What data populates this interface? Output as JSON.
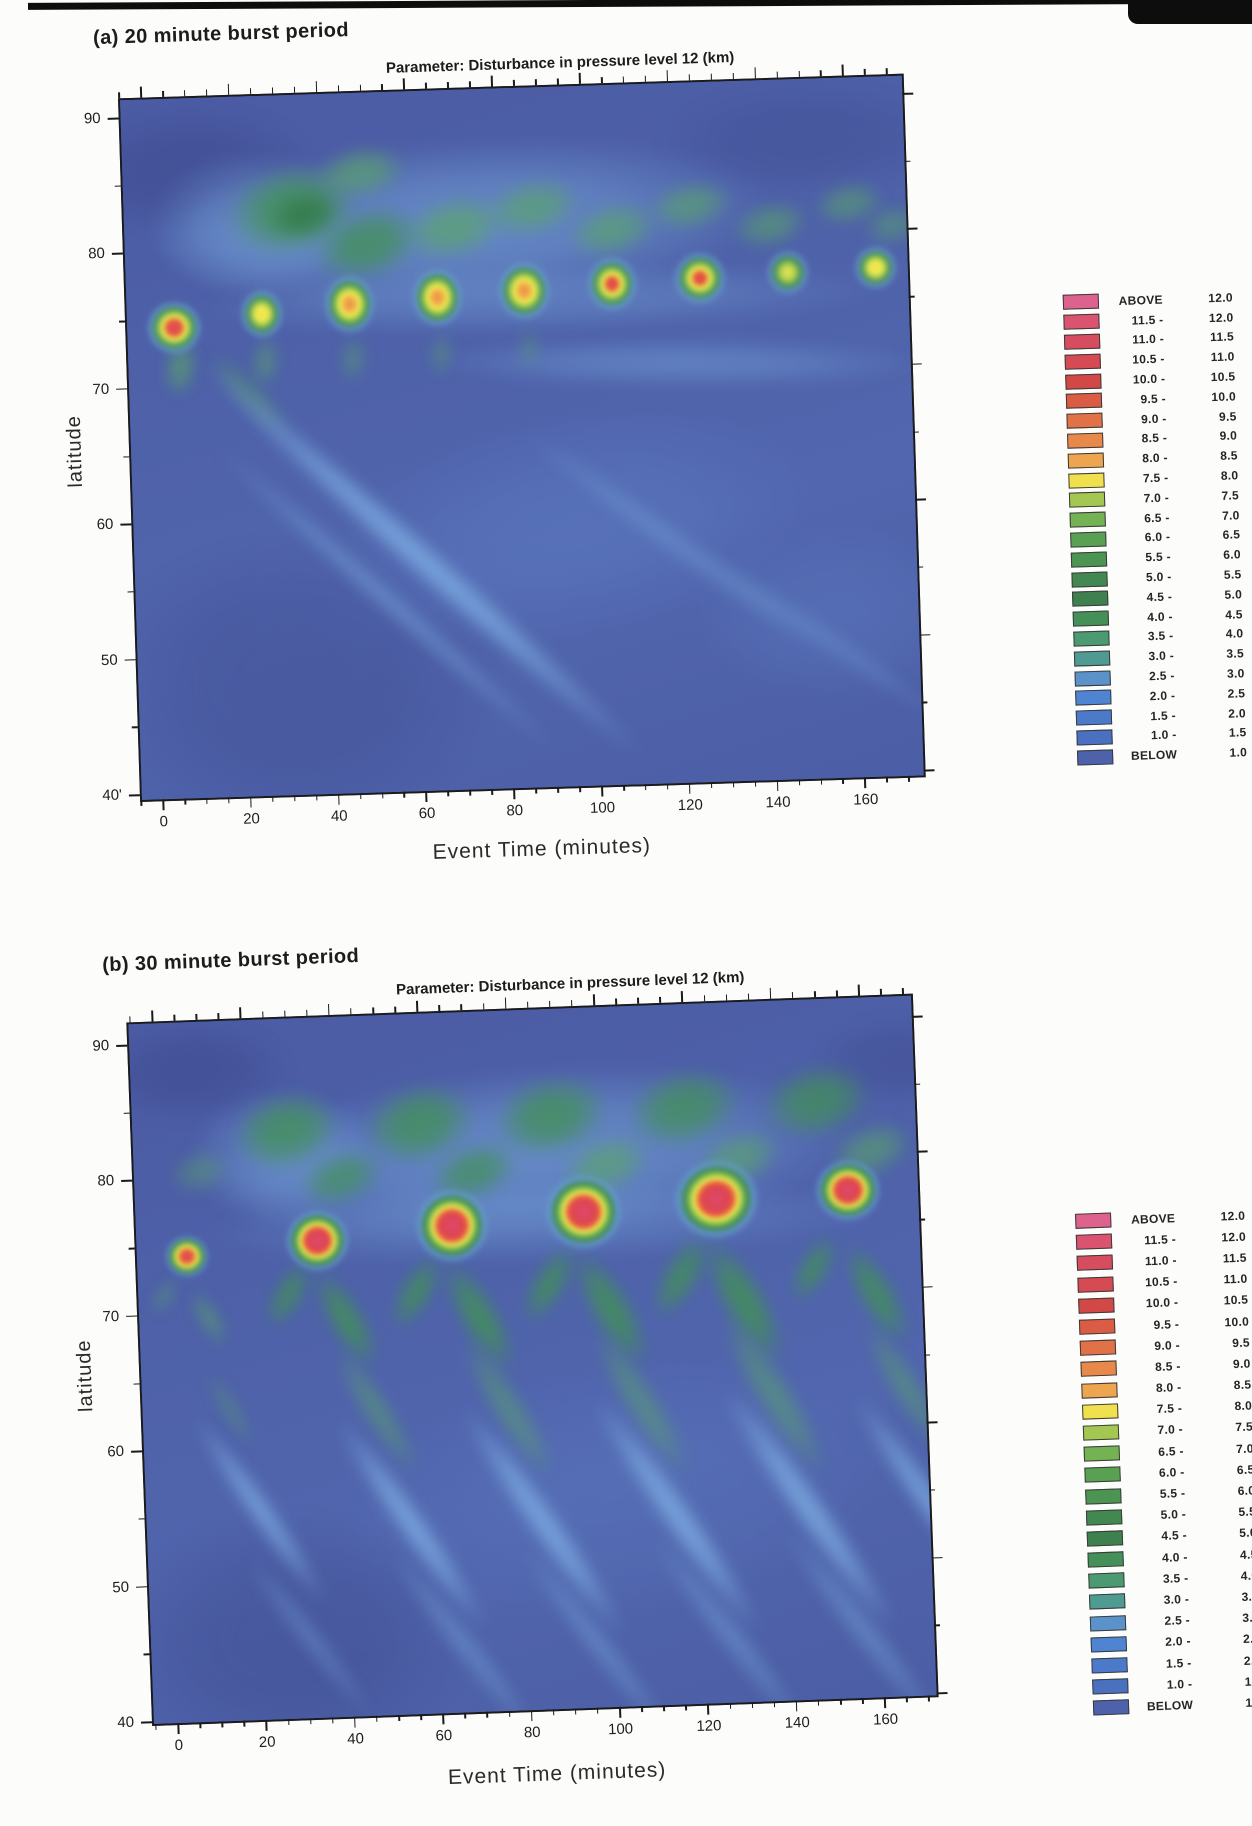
{
  "page": {
    "kind": "scanned scientific figure, two latitude-vs-time disturbance contour maps"
  },
  "legend": {
    "rows": [
      {
        "label": "ABOVE",
        "value": "12.0",
        "color": "#dd628e"
      },
      {
        "label": "11.5 -",
        "value": "12.0",
        "color": "#da5470"
      },
      {
        "label": "11.0 -",
        "value": "11.5",
        "color": "#d74d60"
      },
      {
        "label": "10.5 -",
        "value": "11.0",
        "color": "#d54a53"
      },
      {
        "label": "10.0 -",
        "value": "10.5",
        "color": "#d24846"
      },
      {
        "label": "9.5 -",
        "value": "10.0",
        "color": "#da5c45"
      },
      {
        "label": "9.0 -",
        "value": "9.5",
        "color": "#e17247"
      },
      {
        "label": "8.5 -",
        "value": "9.0",
        "color": "#e8884b"
      },
      {
        "label": "8.0 -",
        "value": "8.5",
        "color": "#eda550"
      },
      {
        "label": "7.5 -",
        "value": "8.0",
        "color": "#f1e04d"
      },
      {
        "label": "7.0 -",
        "value": "7.5",
        "color": "#a3c750"
      },
      {
        "label": "6.5 -",
        "value": "7.0",
        "color": "#74b253"
      },
      {
        "label": "6.0 -",
        "value": "6.5",
        "color": "#58a153"
      },
      {
        "label": "5.5 -",
        "value": "6.0",
        "color": "#4c9452"
      },
      {
        "label": "5.0 -",
        "value": "5.5",
        "color": "#438850"
      },
      {
        "label": "4.5 -",
        "value": "5.0",
        "color": "#3e814e"
      },
      {
        "label": "4.0 -",
        "value": "4.5",
        "color": "#458f59"
      },
      {
        "label": "3.5 -",
        "value": "4.0",
        "color": "#4c9a71"
      },
      {
        "label": "3.0 -",
        "value": "3.5",
        "color": "#4f9a91"
      },
      {
        "label": "2.5 -",
        "value": "3.0",
        "color": "#5a92c9"
      },
      {
        "label": "2.0 -",
        "value": "2.5",
        "color": "#4f84d2"
      },
      {
        "label": "1.5 -",
        "value": "2.0",
        "color": "#4b7acb"
      },
      {
        "label": "1.0 -",
        "value": "1.5",
        "color": "#4a70c0"
      },
      {
        "label": "BELOW",
        "value": "1.0",
        "color": "#4d62ab"
      }
    ]
  },
  "palette": {
    "navy": "radial-gradient(closest-side, rgba(60,70,138,0.9) 0%, rgba(60,70,138,0.75) 50%, rgba(60,70,138,0) 100%)",
    "bluemid": "radial-gradient(closest-side, rgba(100,135,205,0.8) 0%, rgba(100,135,205,0.55) 50%, rgba(100,135,205,0) 100%)",
    "cyan": "radial-gradient(closest-side, rgba(125,178,228,0.85) 0%, rgba(125,178,228,0.62) 50%, rgba(125,178,228,0) 100%)",
    "cyanstreak": "radial-gradient(closest-side, rgba(133,185,235,0.95) 0%, rgba(133,185,235,0.72) 45%, rgba(133,185,235,0) 100%)",
    "greens": "radial-gradient(closest-side, rgba(90,165,105,0.9) 0%, rgba(90,165,105,0.7) 50%, rgba(90,165,105,0) 100%)",
    "greenm": "radial-gradient(closest-side, rgba(66,145,86,0.95) 0%, rgba(66,145,86,0.82) 45%, rgba(66,145,86,0) 100%)",
    "greend": "radial-gradient(closest-side, rgba(48,120,70,0.95) 0%, rgba(48,120,70,0.8) 45%, rgba(48,120,70,0) 100%)",
    "burstRedA": "radial-gradient(closest-side, #e0485c 0%, #e4563f 26%, #f3ed4e 40%, #9cc850 52%, #47925a 66%, rgba(100,165,200,0.65) 80%, rgba(100,165,200,0) 100%)",
    "burstOrgA": "radial-gradient(closest-side, #ec8848 0%, #f0b04c 22%, #f3ed4e 36%, #9cc850 50%, #47925a 66%, rgba(100,165,200,0.6) 80%, rgba(100,165,200,0) 100%)",
    "burstYelA": "radial-gradient(closest-side, #eede4c 0%, #f3ed4e 24%, #a9cc50 42%, #47925a 60%, rgba(100,165,200,0.6) 78%, rgba(100,165,200,0) 100%)",
    "burstYelSA": "radial-gradient(closest-side, #f0ec4e 0%, #a9cc50 34%, #47925a 56%, rgba(100,165,200,0.55) 76%, rgba(100,165,200,0) 100%)",
    "burstRedSA": "radial-gradient(closest-side, #de4550 0%, #e4563f 20%, #f3ed4e 34%, #9cc850 48%, #47925a 64%, rgba(100,165,200,0.6) 78%, rgba(100,165,200,0) 100%)",
    "burstRedSB": "radial-gradient(closest-side, #df4557 0%, #e75a3f 28%, #f4ee4e 44%, #94c44f 56%, #428c54 70%, rgba(100,165,200,0.6) 82%, rgba(100,165,200,0) 100%)",
    "burstRedB": "radial-gradient(closest-side, #e0486e 0%, #dd4550 30%, #e9603f 40%, #f4ee4e 50%, #8cc24f 60%, #3f8a52 72%, rgba(100,160,205,0.7) 84%, rgba(100,160,205,0) 100%)"
  },
  "chart_data": [
    {
      "type": "heatmap",
      "panel": "a",
      "heading": "(a) 20 minute burst period",
      "title": "Parameter: Disturbance in pressure level 12 (km)",
      "xlabel": "Event Time (minutes)",
      "ylabel": "latitude",
      "x_ticks": [
        0,
        20,
        40,
        60,
        80,
        100,
        120,
        140,
        160
      ],
      "x_minor_step": 5,
      "y_ticks": [
        90,
        80,
        70,
        60,
        50,
        40
      ],
      "y_tick_labels": [
        "90",
        "80",
        "70",
        "60",
        "50",
        "40'"
      ],
      "xlim": [
        -5,
        173
      ],
      "ylim": [
        40,
        91.7
      ],
      "legend_range": [
        1.0,
        12.0
      ],
      "burst_period_minutes": 20,
      "burst_times_min": [
        5,
        25,
        45,
        65,
        85,
        105,
        125,
        145,
        165
      ],
      "burst_latitudes_deg": [
        74.6,
        75.4,
        75.9,
        76.2,
        76.5,
        76.8,
        77.0,
        77.2,
        77.4
      ],
      "burst_peak_values": [
        11,
        8,
        9,
        9,
        9.5,
        10.5,
        10.5,
        8,
        7.5
      ],
      "structure_notes": "green fan of disturbance 4-7 spreading poleward (lat 78-87) after t=15; equatorward-propagating cyan streak from (15,71) to (110,41)",
      "feature_format": "[t_min, latitude_deg, width_px, height_px, rotation_deg, palette_key, opacity]",
      "features": [
        [
          10,
          86,
          260,
          130,
          0,
          "navy",
          0.55
        ],
        [
          150,
          87,
          300,
          110,
          0,
          "navy",
          0.35
        ],
        [
          30,
          48,
          420,
          300,
          0,
          "navy",
          0.4
        ],
        [
          95,
          59,
          500,
          230,
          -8,
          "bluemid",
          0.45
        ],
        [
          155,
          52,
          300,
          180,
          0,
          "bluemid",
          0.35
        ],
        [
          72,
          81.5,
          620,
          170,
          -2,
          "cyan",
          0.6
        ],
        [
          24,
          82,
          210,
          150,
          0,
          "cyan",
          0.5
        ],
        [
          120,
          70.8,
          500,
          48,
          2,
          "cyan",
          0.45
        ],
        [
          88,
          75.8,
          700,
          66,
          0,
          "cyan",
          0.4
        ],
        [
          33,
          83,
          135,
          92,
          -10,
          "greenm",
          0.9
        ],
        [
          36,
          82.6,
          76,
          48,
          -10,
          "greend",
          0.8
        ],
        [
          50,
          80.3,
          115,
          72,
          -15,
          "greenm",
          0.85
        ],
        [
          49,
          85.6,
          92,
          52,
          -8,
          "greens",
          0.8
        ],
        [
          70,
          81.3,
          105,
          62,
          -12,
          "greens",
          0.85
        ],
        [
          88,
          82.6,
          98,
          56,
          -10,
          "greens",
          0.8
        ],
        [
          106,
          80.8,
          92,
          52,
          -12,
          "greens",
          0.8
        ],
        [
          124,
          82.4,
          88,
          48,
          -10,
          "greens",
          0.75
        ],
        [
          142,
          80.8,
          78,
          46,
          -12,
          "greens",
          0.7
        ],
        [
          160,
          82.2,
          72,
          42,
          -10,
          "greens",
          0.68
        ],
        [
          170,
          80.5,
          60,
          40,
          -10,
          "greens",
          0.6
        ],
        [
          22,
          69.5,
          115,
          26,
          47,
          "greens",
          0.55
        ],
        [
          60,
          57,
          600,
          34,
          43.5,
          "cyanstreak",
          0.8
        ],
        [
          52,
          54,
          470,
          22,
          43.5,
          "cyanstreak",
          0.5
        ],
        [
          118,
          57.5,
          390,
          26,
          38,
          "cyan",
          0.4
        ],
        [
          150,
          50.5,
          330,
          22,
          36,
          "cyan",
          0.35
        ],
        [
          6.5,
          71.6,
          32,
          60,
          8,
          "greens",
          0.8
        ],
        [
          26,
          71.8,
          28,
          52,
          8,
          "greens",
          0.65
        ],
        [
          46,
          71.8,
          26,
          48,
          8,
          "greens",
          0.55
        ],
        [
          66,
          72,
          24,
          44,
          8,
          "greens",
          0.5
        ],
        [
          86,
          72.2,
          22,
          40,
          8,
          "greens",
          0.45
        ],
        [
          5.5,
          74.6,
          58,
          56,
          0,
          "burstRedA",
          1
        ],
        [
          25.5,
          75.4,
          46,
          52,
          0,
          "burstYelA",
          1
        ],
        [
          45.5,
          75.9,
          54,
          62,
          0,
          "burstOrgA",
          1
        ],
        [
          65.5,
          76.2,
          54,
          62,
          0,
          "burstOrgA",
          1
        ],
        [
          85.5,
          76.5,
          56,
          62,
          0,
          "burstOrgA",
          1
        ],
        [
          105.5,
          76.8,
          54,
          58,
          0,
          "burstRedSA",
          1
        ],
        [
          125.5,
          77,
          56,
          56,
          0,
          "burstRedSA",
          1
        ],
        [
          145.5,
          77.2,
          46,
          48,
          0,
          "burstYelSA",
          1
        ],
        [
          165.5,
          77.4,
          46,
          46,
          0,
          "burstYelA",
          1
        ]
      ]
    },
    {
      "type": "heatmap",
      "panel": "b",
      "heading": "(b) 30 minute burst period",
      "title": "Parameter: Disturbance in pressure level 12 (km)",
      "xlabel": "Event Time (minutes)",
      "ylabel": "latitude",
      "x_ticks": [
        0,
        20,
        40,
        60,
        80,
        100,
        120,
        140,
        160
      ],
      "x_minor_step": 5,
      "y_ticks": [
        90,
        80,
        70,
        60,
        50,
        40
      ],
      "y_tick_labels": [
        "90",
        "80",
        "70",
        "60",
        "50",
        "40"
      ],
      "xlim": [
        -5,
        171
      ],
      "ylim": [
        40,
        91.7
      ],
      "legend_range": [
        1.0,
        12.0
      ],
      "burst_period_minutes": 30,
      "burst_times_min": [
        5,
        35,
        65,
        95,
        125,
        155
      ],
      "burst_latitudes_deg": [
        74.4,
        75.2,
        76.0,
        76.6,
        77.2,
        77.5
      ],
      "burst_peak_values": [
        11,
        12,
        12,
        12,
        12,
        12
      ],
      "structure_notes": "large red cores above 12 with yellow rings; green chevron wakes and cyan streaks propagating equatorward from each burst; green blobs at lat 79-85 above bursts",
      "feature_format": "[t_min, latitude_deg, width_px, height_px, rotation_deg, palette_key, opacity]",
      "features": [
        [
          8,
          88,
          200,
          100,
          0,
          "navy",
          0.5
        ],
        [
          168,
          87,
          180,
          90,
          0,
          "navy",
          0.4
        ],
        [
          25,
          46,
          380,
          260,
          0,
          "navy",
          0.45
        ],
        [
          85,
          81,
          650,
          175,
          -2,
          "cyan",
          0.6
        ],
        [
          28,
          81.5,
          190,
          140,
          0,
          "cyan",
          0.5
        ],
        [
          85,
          76,
          700,
          80,
          0,
          "cyan",
          0.35
        ],
        [
          100,
          56,
          560,
          260,
          -5,
          "bluemid",
          0.3
        ],
        [
          29,
          83.4,
          110,
          78,
          -12,
          "greenm",
          0.85
        ],
        [
          41,
          79.8,
          88,
          54,
          -18,
          "greenm",
          0.75
        ],
        [
          59,
          83.6,
          115,
          80,
          -12,
          "greenm",
          0.85
        ],
        [
          71,
          79.9,
          92,
          56,
          -18,
          "greenm",
          0.78
        ],
        [
          89,
          83.8,
          118,
          80,
          -12,
          "greenm",
          0.85
        ],
        [
          101,
          80,
          92,
          56,
          -18,
          "greens",
          0.78
        ],
        [
          119,
          84,
          118,
          78,
          -12,
          "greenm",
          0.82
        ],
        [
          131,
          80.2,
          90,
          54,
          -18,
          "greens",
          0.75
        ],
        [
          149,
          84.2,
          112,
          74,
          -12,
          "greenm",
          0.8
        ],
        [
          161,
          80.4,
          86,
          52,
          -18,
          "greens",
          0.72
        ],
        [
          9,
          80.6,
          62,
          44,
          -15,
          "greens",
          0.5
        ],
        [
          0,
          71.5,
          42,
          18,
          -58,
          "greens",
          0.6
        ],
        [
          10,
          69.8,
          64,
          22,
          62,
          "greens",
          0.7
        ],
        [
          14,
          63,
          90,
          20,
          60,
          "greens",
          0.45
        ],
        [
          20,
          55.5,
          230,
          26,
          57,
          "cyanstreak",
          0.75
        ],
        [
          30,
          46,
          210,
          22,
          54,
          "cyan",
          0.45
        ],
        [
          28,
          71.3,
          74,
          30,
          -58,
          "greenm",
          0.85
        ],
        [
          41,
          69.3,
          112,
          36,
          62,
          "greenm",
          0.9
        ],
        [
          47,
          62.5,
          150,
          30,
          60,
          "greens",
          0.6
        ],
        [
          54,
          54,
          260,
          30,
          57,
          "cyanstreak",
          0.8
        ],
        [
          65,
          45,
          240,
          26,
          54,
          "cyan",
          0.5
        ],
        [
          57,
          71.2,
          84,
          34,
          -58,
          "greenm",
          0.85
        ],
        [
          71,
          69.2,
          126,
          40,
          62,
          "greenm",
          0.9
        ],
        [
          77,
          62.3,
          168,
          34,
          60,
          "greens",
          0.6
        ],
        [
          84,
          53.8,
          280,
          32,
          57,
          "cyanstreak",
          0.8
        ],
        [
          95,
          44.8,
          250,
          26,
          54,
          "cyan",
          0.5
        ],
        [
          87,
          71.4,
          88,
          35,
          -58,
          "greenm",
          0.85
        ],
        [
          101,
          69.4,
          132,
          42,
          62,
          "greenm",
          0.9
        ],
        [
          107,
          62.4,
          175,
          35,
          60,
          "greens",
          0.6
        ],
        [
          114,
          54,
          290,
          33,
          57,
          "cyanstreak",
          0.8
        ],
        [
          125,
          45,
          255,
          27,
          54,
          "cyan",
          0.5
        ],
        [
          117,
          71.6,
          95,
          38,
          -58,
          "greenm",
          0.85
        ],
        [
          131,
          69.6,
          142,
          45,
          62,
          "greenm",
          0.9
        ],
        [
          137,
          62.6,
          188,
          38,
          60,
          "greens",
          0.62
        ],
        [
          144,
          54.2,
          300,
          34,
          57,
          "cyanstreak",
          0.8
        ],
        [
          155,
          45.2,
          260,
          28,
          54,
          "cyan",
          0.5
        ],
        [
          147,
          71.8,
          76,
          31,
          -58,
          "greenm",
          0.85
        ],
        [
          161,
          69.8,
          114,
          37,
          62,
          "greenm",
          0.88
        ],
        [
          167,
          62.8,
          152,
          31,
          60,
          "greens",
          0.6
        ],
        [
          171,
          54.4,
          260,
          30,
          57,
          "cyanstreak",
          0.75
        ],
        [
          5.5,
          74.4,
          46,
          44,
          0,
          "burstRedSB",
          1
        ],
        [
          35,
          75.2,
          66,
          64,
          -5,
          "burstRedB",
          1
        ],
        [
          65.5,
          76,
          76,
          76,
          0,
          "burstRedB",
          1
        ],
        [
          95.5,
          76.6,
          80,
          78,
          5,
          "burstRedB",
          1
        ],
        [
          125.5,
          77.2,
          88,
          82,
          -8,
          "burstRedB",
          1
        ],
        [
          155.5,
          77.5,
          68,
          64,
          0,
          "burstRedB",
          1
        ]
      ]
    }
  ]
}
